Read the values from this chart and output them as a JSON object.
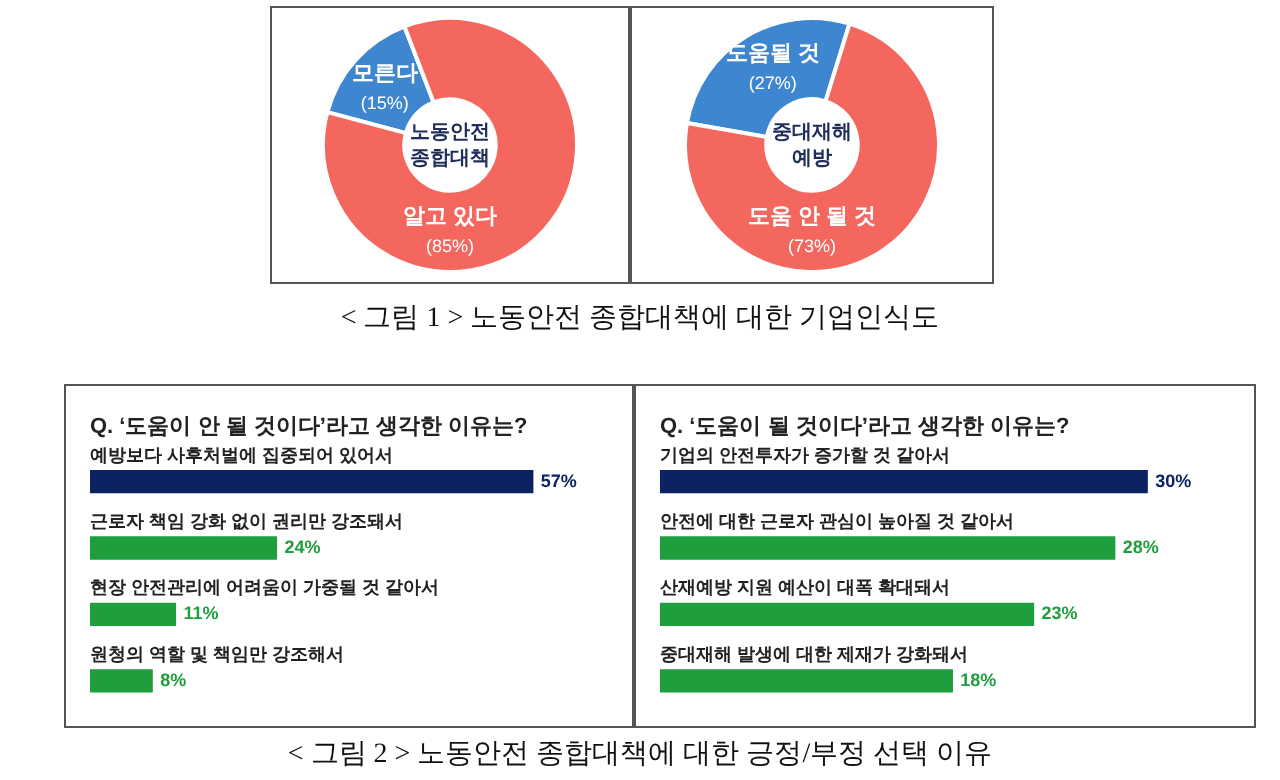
{
  "chart_data": [
    {
      "type": "donut",
      "title": "노동안전 종합대책",
      "categories": [
        "모른다",
        "알고 있다"
      ],
      "values": [
        15,
        85
      ],
      "colors": [
        "#3f86d1",
        "#f4675f"
      ],
      "value_labels": [
        "(15%)",
        "(85%)"
      ],
      "legend": false,
      "annotations": [
        "< 그림 1 > 노동안전 종합대책에 대한 기업인식도"
      ]
    },
    {
      "type": "donut",
      "title": "중대재해 예방",
      "categories": [
        "도움될 것",
        "도움 안 될 것"
      ],
      "values": [
        27,
        73
      ],
      "colors": [
        "#3f86d1",
        "#f4675f"
      ],
      "value_labels": [
        "(27%)",
        "(73%)"
      ],
      "legend": false
    },
    {
      "type": "bar",
      "orientation": "horizontal",
      "title": "Q. ‘도움이 안 될 것이다’라고 생각한 이유는?",
      "categories": [
        "예방보다 사후처벌에 집중되어 있어서",
        "근로자 책임 강화 없이 권리만 강조돼서",
        "현장 안전관리에 어려움이 가중될 것 같아서",
        "원청의 역할 및 책임만 강조해서"
      ],
      "values": [
        57,
        24,
        11,
        8
      ],
      "colors": [
        "#0c2262",
        "#1f9e3d",
        "#1f9e3d",
        "#1f9e3d"
      ],
      "value_labels": [
        "57%",
        "24%",
        "11%",
        "8%"
      ],
      "legend": false,
      "annotations": [
        "< 그림 2 > 노동안전 종합대책에 대한 긍정/부정 선택 이유"
      ]
    },
    {
      "type": "bar",
      "orientation": "horizontal",
      "title": "Q. ‘도움이 될 것이다’라고 생각한 이유는?",
      "categories": [
        "기업의 안전투자가 증가할 것 같아서",
        "안전에 대한 근로자 관심이 높아질 것 같아서",
        "산재예방 지원 예산이 대폭 확대돼서",
        "중대재해 발생에 대한 제재가 강화돼서"
      ],
      "values": [
        30,
        28,
        23,
        18
      ],
      "colors": [
        "#0c2262",
        "#1f9e3d",
        "#1f9e3d",
        "#1f9e3d"
      ],
      "value_labels": [
        "30%",
        "28%",
        "23%",
        "18%"
      ],
      "legend": false
    }
  ]
}
